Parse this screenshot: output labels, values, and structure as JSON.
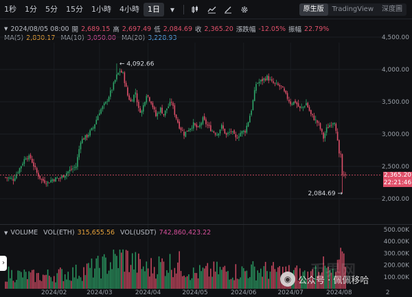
{
  "toolbar": {
    "timeframes": [
      "1秒",
      "1分",
      "5分",
      "15分",
      "1小時",
      "4小時",
      "1日"
    ],
    "active_timeframe": "1日",
    "view_modes": [
      "原生版",
      "TradingView",
      "深度圖"
    ],
    "active_view": "原生版"
  },
  "ohlc": {
    "datetime": "2024/08/05 08:00",
    "open_label": "開",
    "open": "2,689.15",
    "high_label": "高",
    "high": "2,697.49",
    "low_label": "低",
    "low": "2,084.69",
    "close_label": "收",
    "close": "2,365.20",
    "change_label": "漲跌幅",
    "change": "-12.05%",
    "amplitude_label": "振幅",
    "amplitude": "22.79%"
  },
  "ma": {
    "ma5_label": "MA(5)",
    "ma5": "2,830.17",
    "ma10_label": "MA(10)",
    "ma10": "3,050.00",
    "ma20_label": "MA(20)",
    "ma20": "3,228.93"
  },
  "volume": {
    "label": "VOLUME",
    "eth_label": "VOL(ETH)",
    "eth": "315,655.56",
    "usdt_label": "VOL(USDT)",
    "usdt": "742,860,423.22"
  },
  "last_price": {
    "price": "2,365.20",
    "countdown": "22:21:46"
  },
  "annotations": {
    "high_marker": "4,092.66",
    "low_marker": "2,084.69"
  },
  "watermark": {
    "text": "公众号 · 佩佩移哈",
    "brand": "币界网"
  },
  "colors": {
    "up": "#2ea86a",
    "down": "#e0506a",
    "background": "#101114"
  },
  "chart_data": {
    "type": "candlestick",
    "price_ticks": [
      "4,500.00",
      "4,000.00",
      "3,500.00",
      "3,000.00",
      "2,500.00",
      "2,000.00"
    ],
    "price_tick_values": [
      4500,
      4000,
      3500,
      3000,
      2500,
      2000
    ],
    "volume_ticks": [
      "500.00K",
      "400.00K",
      "300.00K",
      "200.00K",
      "100.00K"
    ],
    "volume_tick_values": [
      500000,
      400000,
      300000,
      200000,
      100000
    ],
    "x_ticks": [
      "2024/02",
      "2024/03",
      "2024/04",
      "2024/05",
      "2024/06",
      "2024/07",
      "2024/08",
      "2"
    ],
    "x_tick_dates": [
      "2024-02-01",
      "2024-03-01",
      "2024-04-01",
      "2024-05-01",
      "2024-06-01",
      "2024-07-01",
      "2024-08-01",
      "2024-09-01"
    ],
    "price_range": [
      1700,
      4720
    ],
    "volume_range": [
      0,
      550000
    ],
    "start_date": "2024-01-01",
    "end_date": "2024-08-05",
    "close_anchors": [
      [
        0,
        2330
      ],
      [
        5,
        2300
      ],
      [
        9,
        2470
      ],
      [
        13,
        2650
      ],
      [
        16,
        2630
      ],
      [
        20,
        2400
      ],
      [
        23,
        2290
      ],
      [
        27,
        2250
      ],
      [
        30,
        2300
      ],
      [
        35,
        2320
      ],
      [
        40,
        2420
      ],
      [
        45,
        2500
      ],
      [
        48,
        2900
      ],
      [
        52,
        2970
      ],
      [
        56,
        3100
      ],
      [
        60,
        3350
      ],
      [
        64,
        3480
      ],
      [
        68,
        3700
      ],
      [
        71,
        3900
      ],
      [
        73,
        3980
      ],
      [
        75,
        3930
      ],
      [
        78,
        3600
      ],
      [
        80,
        3500
      ],
      [
        83,
        3650
      ],
      [
        85,
        3380
      ],
      [
        87,
        3350
      ],
      [
        90,
        3620
      ],
      [
        93,
        3500
      ],
      [
        96,
        3280
      ],
      [
        99,
        3390
      ],
      [
        101,
        3300
      ],
      [
        103,
        3400
      ],
      [
        106,
        3500
      ],
      [
        108,
        3320
      ],
      [
        111,
        3120
      ],
      [
        114,
        3000
      ],
      [
        117,
        3080
      ],
      [
        120,
        3150
      ],
      [
        123,
        3080
      ],
      [
        126,
        3230
      ],
      [
        129,
        3130
      ],
      [
        132,
        3050
      ],
      [
        135,
        3000
      ],
      [
        138,
        3120
      ],
      [
        141,
        2980
      ],
      [
        144,
        3050
      ],
      [
        147,
        2930
      ],
      [
        150,
        3020
      ],
      [
        153,
        3050
      ],
      [
        155,
        3200
      ],
      [
        157,
        3380
      ],
      [
        160,
        3780
      ],
      [
        163,
        3820
      ],
      [
        167,
        3880
      ],
      [
        170,
        3800
      ],
      [
        173,
        3760
      ],
      [
        176,
        3730
      ],
      [
        179,
        3600
      ],
      [
        182,
        3480
      ],
      [
        185,
        3500
      ],
      [
        188,
        3390
      ],
      [
        190,
        3420
      ],
      [
        192,
        3480
      ],
      [
        195,
        3300
      ],
      [
        197,
        3240
      ],
      [
        200,
        3150
      ],
      [
        203,
        2940
      ],
      [
        205,
        3080
      ],
      [
        208,
        3170
      ],
      [
        211,
        3220
      ],
      [
        214,
        3350
      ],
      [
        216,
        3480
      ],
      [
        218,
        3450
      ],
      [
        220,
        3500
      ],
      [
        222,
        3450
      ],
      [
        224,
        3350
      ],
      [
        226,
        3300
      ],
      [
        228,
        3270
      ],
      [
        210,
        3180
      ],
      [
        213,
        2365
      ]
    ],
    "volume_profile": [
      [
        0,
        160000
      ],
      [
        20,
        130000
      ],
      [
        45,
        170000
      ],
      [
        60,
        230000
      ],
      [
        75,
        330000
      ],
      [
        90,
        210000
      ],
      [
        100,
        260000
      ],
      [
        110,
        270000
      ],
      [
        120,
        160000
      ],
      [
        135,
        190000
      ],
      [
        150,
        180000
      ],
      [
        160,
        200000
      ],
      [
        175,
        180000
      ],
      [
        185,
        170000
      ],
      [
        195,
        140000
      ],
      [
        200,
        260000
      ],
      [
        210,
        130000
      ],
      [
        215,
        320000
      ]
    ],
    "high_point": {
      "date": "2024-03-12",
      "value": 4092.66
    },
    "low_point": {
      "date": "2024-08-05",
      "value": 2084.69
    }
  }
}
